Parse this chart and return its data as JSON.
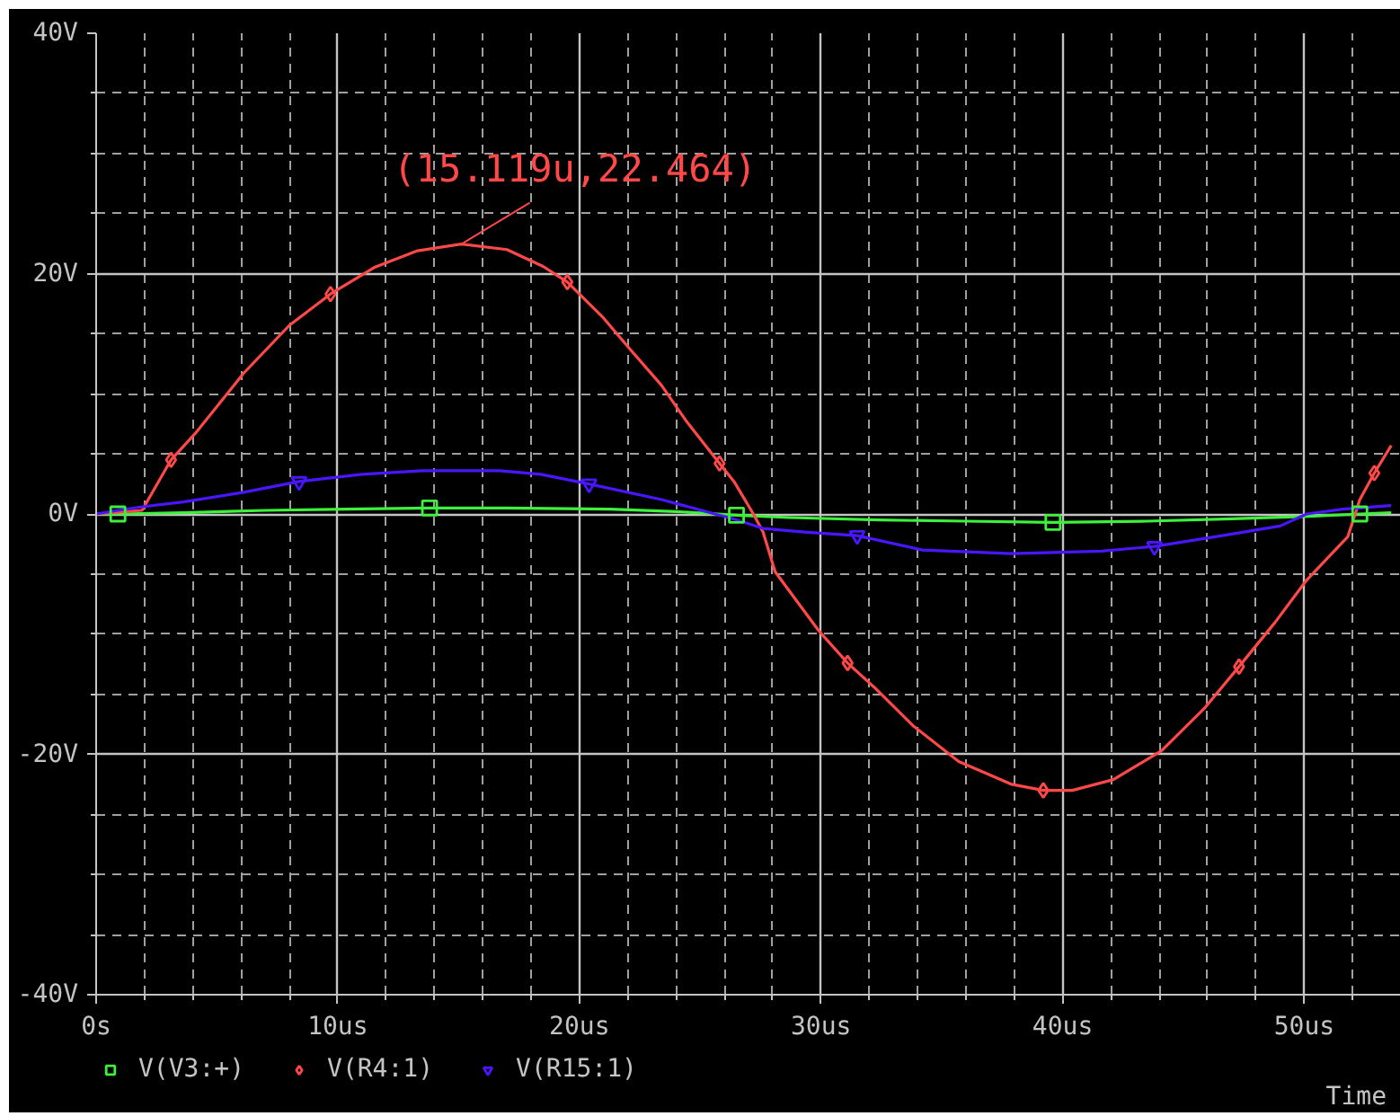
{
  "chart_data": {
    "type": "line",
    "xlabel": "Time",
    "xlim": [
      0,
      54
    ],
    "ylim": [
      -40,
      40
    ],
    "xticks": [
      {
        "value": 0,
        "label": "0s"
      },
      {
        "value": 2,
        "label": null
      },
      {
        "value": 4,
        "label": null
      },
      {
        "value": 6,
        "label": null
      },
      {
        "value": 8,
        "label": null
      },
      {
        "value": 10,
        "label": "10us"
      },
      {
        "value": 12,
        "label": null
      },
      {
        "value": 14,
        "label": null
      },
      {
        "value": 16,
        "label": null
      },
      {
        "value": 18,
        "label": null
      },
      {
        "value": 20,
        "label": "20us"
      },
      {
        "value": 22,
        "label": null
      },
      {
        "value": 24,
        "label": null
      },
      {
        "value": 26,
        "label": null
      },
      {
        "value": 28,
        "label": null
      },
      {
        "value": 30,
        "label": "30us"
      },
      {
        "value": 32,
        "label": null
      },
      {
        "value": 34,
        "label": null
      },
      {
        "value": 36,
        "label": null
      },
      {
        "value": 38,
        "label": null
      },
      {
        "value": 40,
        "label": "40us"
      },
      {
        "value": 42,
        "label": null
      },
      {
        "value": 44,
        "label": null
      },
      {
        "value": 46,
        "label": null
      },
      {
        "value": 48,
        "label": null
      },
      {
        "value": 50,
        "label": "50us"
      },
      {
        "value": 52,
        "label": null
      }
    ],
    "yticks": [
      {
        "value": -40,
        "label": "-40V"
      },
      {
        "value": -35,
        "label": null
      },
      {
        "value": -30,
        "label": null
      },
      {
        "value": -25,
        "label": null
      },
      {
        "value": -20,
        "label": "-20V"
      },
      {
        "value": -15,
        "label": null
      },
      {
        "value": -10,
        "label": null
      },
      {
        "value": -5,
        "label": null
      },
      {
        "value": 0,
        "label": "0V"
      },
      {
        "value": 5,
        "label": null
      },
      {
        "value": 10,
        "label": null
      },
      {
        "value": 15,
        "label": null
      },
      {
        "value": 20,
        "label": "20V"
      },
      {
        "value": 25,
        "label": null
      },
      {
        "value": 30,
        "label": null
      },
      {
        "value": 35,
        "label": null
      },
      {
        "value": 40,
        "label": "40V"
      }
    ],
    "grid": true,
    "legend": "bottom",
    "annotations": [
      {
        "text": "(15.119u,22.464)",
        "x": 15.119,
        "y": 22.464
      }
    ],
    "series": [
      {
        "name": "V(V3:+)",
        "color": "#3cf03c",
        "x": [
          0,
          0.9,
          3.6,
          7,
          10.3,
          13.8,
          17,
          21.3,
          24,
          26.5,
          28.7,
          32.4,
          36,
          39.6,
          43.5,
          47,
          50.2,
          52.3,
          53.6
        ],
        "values": [
          0,
          0,
          0.1,
          0.3,
          0.4,
          0.5,
          0.5,
          0.4,
          0.2,
          -0.1,
          -0.3,
          -0.5,
          -0.6,
          -0.7,
          -0.6,
          -0.4,
          -0.2,
          0,
          0.1
        ]
      },
      {
        "name": "V(R4:1)",
        "color": "#ff4848",
        "x": [
          0,
          1.9,
          3.1,
          4.1,
          6.1,
          8,
          9.7,
          11.5,
          13.3,
          15.119,
          17,
          18.5,
          19.5,
          21,
          22.1,
          23.4,
          24.4,
          25.8,
          26.4,
          27.2,
          27.6,
          28.1,
          29.9,
          31.1,
          32.3,
          33.8,
          35.7,
          37.9,
          39.2,
          40.4,
          42.1,
          44.1,
          45.9,
          47.3,
          48.8,
          50.1,
          51.8,
          52.3,
          52.9,
          53.6
        ],
        "values": [
          0,
          0.3,
          4.5,
          6.7,
          11.7,
          15.7,
          18.3,
          20.5,
          21.9,
          22.464,
          22,
          20.6,
          19.3,
          16.3,
          13.7,
          10.7,
          7.8,
          4.2,
          2.7,
          0,
          -1.5,
          -4.8,
          -9.7,
          -12.4,
          -14.6,
          -17.6,
          -20.6,
          -22.5,
          -23,
          -23,
          -22.1,
          -19.7,
          -16.1,
          -12.7,
          -9,
          -5.5,
          -1.9,
          1.2,
          3.4,
          5.7
        ]
      },
      {
        "name": "V(R15:1)",
        "color": "#4a16ff",
        "x": [
          0,
          0.9,
          1.9,
          3.6,
          6.1,
          8.4,
          11,
          13.5,
          16.7,
          18.4,
          20.4,
          23.4,
          25.6,
          26.2,
          27.6,
          29.3,
          31.5,
          34.2,
          37.9,
          41.6,
          43.8,
          46.6,
          49,
          50.1,
          51.6,
          53.6
        ],
        "values": [
          0,
          0.3,
          0.6,
          1,
          1.8,
          2.7,
          3.3,
          3.6,
          3.6,
          3.3,
          2.5,
          1.2,
          0,
          -0.3,
          -1.2,
          -1.5,
          -1.8,
          -3,
          -3.3,
          -3.1,
          -2.7,
          -1.8,
          -1,
          0,
          0.4,
          0.7
        ]
      },
      {
        "type": "scatter",
        "color": "#3cf03c",
        "marker": "square",
        "x": [
          0.9,
          13.8,
          26.5,
          39.6,
          52.3
        ],
        "values": [
          0,
          0.5,
          -0.1,
          -0.7,
          0
        ]
      },
      {
        "type": "scatter",
        "color": "#ff4848",
        "marker": "diamond",
        "x": [
          3.1,
          9.7,
          19.5,
          25.8,
          31.1,
          39.2,
          47.3,
          52.9
        ],
        "values": [
          4.5,
          18.3,
          19.3,
          4.2,
          -12.4,
          -23,
          -12.7,
          3.4
        ]
      },
      {
        "type": "scatter",
        "color": "#4a16ff",
        "marker": "triangle",
        "x": [
          8.4,
          20.4,
          31.5,
          43.8
        ],
        "values": [
          2.7,
          2.5,
          -1.8,
          -2.7
        ]
      }
    ]
  }
}
